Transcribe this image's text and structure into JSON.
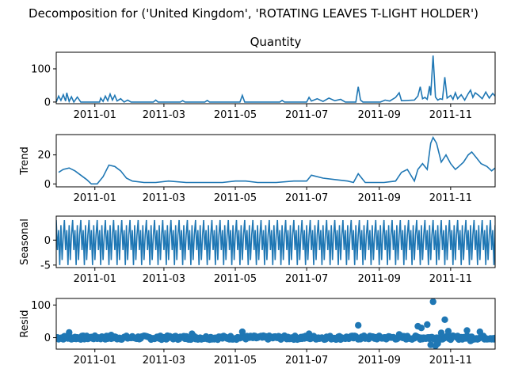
{
  "suptitle": "Decomposition for ('United Kingdom', 'ROTATING LEAVES T-LIGHT HOLDER')",
  "colors": {
    "series": "#1f77b4",
    "axis": "#000000",
    "zero_line": "#000000"
  },
  "chart_data": [
    {
      "type": "line",
      "title": "Quantity",
      "ylabel": "",
      "x_range": [
        "2010-11-29",
        "2011-12-09"
      ],
      "ylim": [
        -5,
        150
      ],
      "yticks": [
        0,
        100
      ],
      "xticks": [
        "2011-01",
        "2011-03",
        "2011-05",
        "2011-07",
        "2011-09",
        "2011-11"
      ],
      "points": [
        [
          "2010-11-29",
          0
        ],
        [
          "2010-12-01",
          18
        ],
        [
          "2010-12-03",
          5
        ],
        [
          "2010-12-05",
          22
        ],
        [
          "2010-12-07",
          3
        ],
        [
          "2010-12-08",
          28
        ],
        [
          "2010-12-10",
          2
        ],
        [
          "2010-12-12",
          16
        ],
        [
          "2010-12-14",
          0
        ],
        [
          "2010-12-17",
          15
        ],
        [
          "2010-12-20",
          0
        ],
        [
          "2011-01-05",
          0
        ],
        [
          "2011-01-06",
          12
        ],
        [
          "2011-01-08",
          2
        ],
        [
          "2011-01-10",
          18
        ],
        [
          "2011-01-12",
          4
        ],
        [
          "2011-01-14",
          24
        ],
        [
          "2011-01-16",
          6
        ],
        [
          "2011-01-18",
          20
        ],
        [
          "2011-01-20",
          3
        ],
        [
          "2011-01-23",
          10
        ],
        [
          "2011-01-26",
          0
        ],
        [
          "2011-01-29",
          6
        ],
        [
          "2011-02-01",
          0
        ],
        [
          "2011-02-20",
          0
        ],
        [
          "2011-02-22",
          6
        ],
        [
          "2011-02-24",
          0
        ],
        [
          "2011-03-15",
          0
        ],
        [
          "2011-03-17",
          4
        ],
        [
          "2011-03-19",
          0
        ],
        [
          "2011-04-05",
          0
        ],
        [
          "2011-04-07",
          5
        ],
        [
          "2011-04-09",
          0
        ],
        [
          "2011-05-05",
          0
        ],
        [
          "2011-05-07",
          20
        ],
        [
          "2011-05-09",
          0
        ],
        [
          "2011-06-08",
          0
        ],
        [
          "2011-06-10",
          5
        ],
        [
          "2011-06-12",
          0
        ],
        [
          "2011-07-01",
          0
        ],
        [
          "2011-07-03",
          14
        ],
        [
          "2011-07-05",
          3
        ],
        [
          "2011-07-10",
          10
        ],
        [
          "2011-07-15",
          2
        ],
        [
          "2011-07-20",
          12
        ],
        [
          "2011-07-25",
          4
        ],
        [
          "2011-07-30",
          8
        ],
        [
          "2011-08-03",
          0
        ],
        [
          "2011-08-12",
          0
        ],
        [
          "2011-08-14",
          46
        ],
        [
          "2011-08-16",
          6
        ],
        [
          "2011-08-18",
          0
        ],
        [
          "2011-09-02",
          0
        ],
        [
          "2011-09-06",
          6
        ],
        [
          "2011-09-10",
          3
        ],
        [
          "2011-09-15",
          14
        ],
        [
          "2011-09-18",
          28
        ],
        [
          "2011-09-20",
          4
        ],
        [
          "2011-10-01",
          6
        ],
        [
          "2011-10-04",
          18
        ],
        [
          "2011-10-06",
          46
        ],
        [
          "2011-10-08",
          10
        ],
        [
          "2011-10-10",
          14
        ],
        [
          "2011-10-12",
          8
        ],
        [
          "2011-10-14",
          48
        ],
        [
          "2011-10-15",
          20
        ],
        [
          "2011-10-17",
          140
        ],
        [
          "2011-10-19",
          15
        ],
        [
          "2011-10-21",
          6
        ],
        [
          "2011-10-23",
          10
        ],
        [
          "2011-10-25",
          8
        ],
        [
          "2011-10-27",
          75
        ],
        [
          "2011-10-29",
          12
        ],
        [
          "2011-11-01",
          20
        ],
        [
          "2011-11-03",
          8
        ],
        [
          "2011-11-05",
          28
        ],
        [
          "2011-11-07",
          10
        ],
        [
          "2011-11-10",
          22
        ],
        [
          "2011-11-13",
          6
        ],
        [
          "2011-11-16",
          25
        ],
        [
          "2011-11-18",
          36
        ],
        [
          "2011-11-20",
          14
        ],
        [
          "2011-11-22",
          28
        ],
        [
          "2011-11-25",
          20
        ],
        [
          "2011-11-28",
          10
        ],
        [
          "2011-12-01",
          30
        ],
        [
          "2011-12-04",
          12
        ],
        [
          "2011-12-07",
          26
        ],
        [
          "2011-12-09",
          18
        ]
      ]
    },
    {
      "type": "line",
      "title": "",
      "ylabel": "Trend",
      "x_range": [
        "2010-11-29",
        "2011-12-09"
      ],
      "ylim": [
        -2,
        34
      ],
      "yticks": [
        0,
        20
      ],
      "xticks": [
        "2011-01",
        "2011-03",
        "2011-05",
        "2011-07",
        "2011-09",
        "2011-11"
      ],
      "points": [
        [
          "2010-12-01",
          8
        ],
        [
          "2010-12-05",
          10
        ],
        [
          "2010-12-10",
          11
        ],
        [
          "2010-12-15",
          9
        ],
        [
          "2010-12-20",
          6
        ],
        [
          "2010-12-25",
          3
        ],
        [
          "2010-12-29",
          0
        ],
        [
          "2011-01-03",
          0
        ],
        [
          "2011-01-08",
          5
        ],
        [
          "2011-01-13",
          13
        ],
        [
          "2011-01-18",
          12
        ],
        [
          "2011-01-23",
          9
        ],
        [
          "2011-01-28",
          4
        ],
        [
          "2011-02-02",
          2
        ],
        [
          "2011-02-12",
          1
        ],
        [
          "2011-02-22",
          1
        ],
        [
          "2011-03-05",
          2
        ],
        [
          "2011-03-20",
          1
        ],
        [
          "2011-04-05",
          1
        ],
        [
          "2011-04-20",
          1
        ],
        [
          "2011-05-01",
          2
        ],
        [
          "2011-05-10",
          2
        ],
        [
          "2011-05-20",
          1
        ],
        [
          "2011-06-05",
          1
        ],
        [
          "2011-06-20",
          2
        ],
        [
          "2011-07-01",
          2
        ],
        [
          "2011-07-05",
          6
        ],
        [
          "2011-07-15",
          4
        ],
        [
          "2011-07-25",
          3
        ],
        [
          "2011-08-05",
          2
        ],
        [
          "2011-08-10",
          1
        ],
        [
          "2011-08-14",
          7
        ],
        [
          "2011-08-20",
          1
        ],
        [
          "2011-09-05",
          1
        ],
        [
          "2011-09-15",
          2
        ],
        [
          "2011-09-20",
          8
        ],
        [
          "2011-09-25",
          10
        ],
        [
          "2011-10-01",
          2
        ],
        [
          "2011-10-04",
          10
        ],
        [
          "2011-10-08",
          14
        ],
        [
          "2011-10-12",
          10
        ],
        [
          "2011-10-15",
          28
        ],
        [
          "2011-10-17",
          32
        ],
        [
          "2011-10-20",
          28
        ],
        [
          "2011-10-24",
          15
        ],
        [
          "2011-10-28",
          20
        ],
        [
          "2011-11-01",
          14
        ],
        [
          "2011-11-05",
          10
        ],
        [
          "2011-11-08",
          12
        ],
        [
          "2011-11-12",
          15
        ],
        [
          "2011-11-16",
          20
        ],
        [
          "2011-11-19",
          22
        ],
        [
          "2011-11-23",
          18
        ],
        [
          "2011-11-27",
          14
        ],
        [
          "2011-12-02",
          12
        ],
        [
          "2011-12-06",
          9
        ],
        [
          "2011-12-09",
          11
        ]
      ]
    },
    {
      "type": "line",
      "title": "",
      "ylabel": "Seasonal",
      "x_range": [
        "2010-11-29",
        "2011-12-09"
      ],
      "ylim": [
        -5.5,
        4.8
      ],
      "yticks": [
        -5,
        0
      ],
      "xticks": [
        "2011-01",
        "2011-03",
        "2011-05",
        "2011-07",
        "2011-09",
        "2011-11"
      ],
      "period_days": 7,
      "start": "2010-11-29",
      "end": "2011-12-09",
      "pattern": [
        4,
        -2,
        2,
        -5,
        3,
        -4,
        1
      ]
    },
    {
      "type": "scatter",
      "title": "",
      "ylabel": "Resid",
      "x_range": [
        "2010-11-29",
        "2011-12-09"
      ],
      "ylim": [
        -35,
        120
      ],
      "yticks": [
        0,
        100
      ],
      "xticks": [
        "2011-01",
        "2011-03",
        "2011-05",
        "2011-07",
        "2011-09",
        "2011-11"
      ],
      "outliers": [
        [
          "2010-12-10",
          16
        ],
        [
          "2011-01-15",
          8
        ],
        [
          "2011-03-25",
          12
        ],
        [
          "2011-05-07",
          18
        ],
        [
          "2011-07-03",
          12
        ],
        [
          "2011-08-14",
          38
        ],
        [
          "2011-09-18",
          10
        ],
        [
          "2011-10-04",
          35
        ],
        [
          "2011-10-07",
          30
        ],
        [
          "2011-10-12",
          40
        ],
        [
          "2011-10-15",
          -22
        ],
        [
          "2011-10-17",
          110
        ],
        [
          "2011-10-19",
          -25
        ],
        [
          "2011-10-21",
          -18
        ],
        [
          "2011-10-24",
          15
        ],
        [
          "2011-10-27",
          55
        ],
        [
          "2011-10-30",
          20
        ],
        [
          "2011-11-15",
          22
        ],
        [
          "2011-11-18",
          -10
        ],
        [
          "2011-11-26",
          18
        ]
      ],
      "noise_amplitude": 6
    }
  ]
}
